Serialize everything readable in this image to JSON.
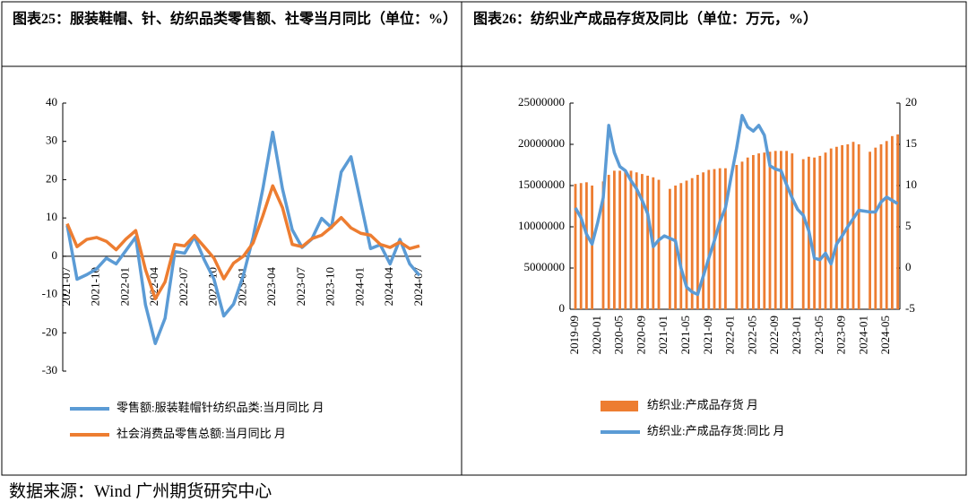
{
  "chart_data": [
    {
      "type": "line",
      "title": "图表25：服装鞋帽、针、纺织品类零售额、社零当月同比（单位：%）",
      "categories": [
        "2021-07",
        null,
        null,
        "2021-10",
        null,
        null,
        "2022-01",
        null,
        null,
        "2022-04",
        null,
        null,
        "2022-07",
        null,
        null,
        "2022-10",
        null,
        null,
        "2023-01",
        null,
        null,
        "2023-04",
        null,
        null,
        "2023-07",
        null,
        null,
        "2023-10",
        null,
        null,
        "2024-01",
        null,
        null,
        "2024-04",
        null,
        null,
        "2024-07"
      ],
      "series": [
        {
          "name": "零售额:服装鞋帽针纺织品类:当月同比  月",
          "color": "#5b9bd5",
          "values": [
            8.1,
            -6,
            -4.8,
            -3.3,
            -0.5,
            -2,
            1.5,
            5,
            -12.7,
            -22.8,
            -16.2,
            1.2,
            0.8,
            5.1,
            -0.9,
            -6,
            -15.6,
            -12.5,
            -5,
            5,
            17.7,
            32.4,
            17.6,
            6.9,
            2.3,
            4.5,
            9.9,
            7.5,
            22,
            26,
            14,
            2,
            3,
            -2,
            4.4,
            -2,
            -5
          ]
        },
        {
          "name": "社会消费品零售总额:当月同比  月",
          "color": "#ed7d31",
          "values": [
            8.5,
            2.5,
            4.4,
            4.9,
            3.9,
            1.7,
            4.5,
            6.7,
            -3.5,
            -11.1,
            -6.7,
            3.1,
            2.7,
            5.4,
            2.5,
            -0.5,
            -5.9,
            -1.8,
            0,
            3.5,
            10.6,
            18.4,
            12.7,
            3.1,
            2.5,
            4.6,
            5.5,
            7.6,
            10.1,
            7.4,
            6,
            5.5,
            3.1,
            2.3,
            3.7,
            2,
            2.7
          ]
        }
      ],
      "ylim": [
        -30,
        40
      ],
      "yticks": [
        -30,
        -20,
        -10,
        0,
        10,
        20,
        30,
        40
      ]
    },
    {
      "type": "bar",
      "title": "图表26：纺织业产成品存货及同比（单位：万元，%）",
      "categories": [
        "2019-09",
        null,
        null,
        null,
        "2020-01",
        null,
        null,
        null,
        "2020-05",
        null,
        null,
        null,
        "2020-09",
        null,
        null,
        null,
        "2021-01",
        null,
        null,
        null,
        "2021-05",
        null,
        null,
        null,
        "2021-09",
        null,
        null,
        null,
        "2022-01",
        null,
        null,
        null,
        "2022-05",
        null,
        null,
        null,
        "2022-09",
        null,
        null,
        null,
        "2023-01",
        null,
        null,
        null,
        "2023-05",
        null,
        null,
        null,
        "2023-09",
        null,
        null,
        null,
        "2024-01",
        null,
        null,
        null,
        "2024-05",
        null,
        null
      ],
      "series": [
        {
          "name": "纺织业:产成品存货  月",
          "color": "#ed7d31",
          "type": "bar",
          "values": [
            15200000,
            15300000,
            15400000,
            15000000,
            null,
            15500000,
            16300000,
            16800000,
            16800000,
            16700000,
            16800000,
            16600000,
            16400000,
            16200000,
            16000000,
            15700000,
            null,
            14600000,
            15000000,
            15300000,
            15600000,
            15900000,
            16300000,
            16600000,
            16900000,
            17000000,
            17100000,
            17100000,
            null,
            17500000,
            17900000,
            18400000,
            18700000,
            18900000,
            19000000,
            19100000,
            19200000,
            19200000,
            19200000,
            18900000,
            null,
            18200000,
            18500000,
            18400000,
            18600000,
            19000000,
            19500000,
            19700000,
            19900000,
            20000000,
            20300000,
            20000000,
            null,
            19100000,
            19600000,
            20000000,
            20400000,
            21000000,
            21200000
          ]
        },
        {
          "name": "纺织业:产成品存货:同比  月",
          "color": "#5b9bd5",
          "type": "line",
          "axis": "y2",
          "values": [
            7.3,
            6.1,
            4.1,
            2.9,
            5.5,
            8.5,
            17.3,
            14,
            12.3,
            11.8,
            10.6,
            9.6,
            8.2,
            6.6,
            2.6,
            3.4,
            3.9,
            3.6,
            3.3,
            0,
            -2.3,
            -2.9,
            -3.2,
            -1,
            1.2,
            3.3,
            5.6,
            7.3,
            11,
            14.5,
            18.5,
            17.1,
            16.6,
            17.3,
            16.1,
            12.4,
            12,
            11.8,
            10.1,
            8.5,
            7.1,
            6.4,
            4.5,
            1.2,
            1,
            1.8,
            0.5,
            2.9,
            3.9,
            5,
            6,
            7,
            6.9,
            6.8,
            6.8,
            8,
            8.6,
            8.2,
            7.8
          ]
        }
      ],
      "ylim": [
        0,
        25000000
      ],
      "yticks": [
        0,
        5000000,
        10000000,
        15000000,
        20000000,
        25000000
      ],
      "y2lim": [
        -5,
        20
      ],
      "y2ticks": [
        -5,
        0,
        5,
        10,
        15,
        20
      ]
    }
  ],
  "source": "数据来源：Wind  广州期货研究中心"
}
